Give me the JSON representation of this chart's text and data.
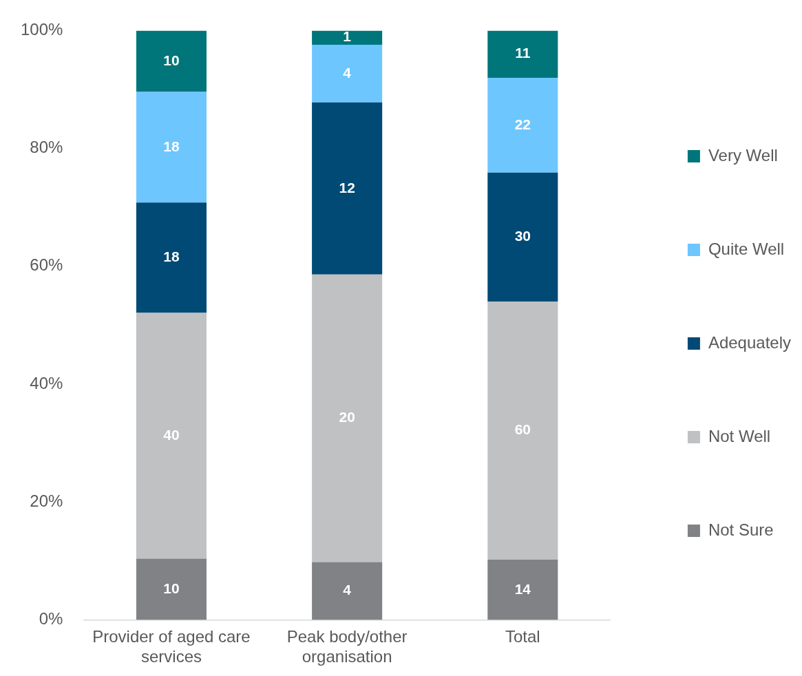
{
  "chart_data": {
    "type": "bar",
    "stacked": true,
    "categories": [
      "Provider of aged care services",
      "Peak body/other organisation",
      "Total"
    ],
    "series": [
      {
        "name": "Not Sure",
        "color": "#808285",
        "values": [
          10.4,
          9.8,
          10.2
        ]
      },
      {
        "name": "Not Well",
        "color": "#c0c1c3",
        "values": [
          41.7,
          48.8,
          43.8
        ]
      },
      {
        "name": "Adequately",
        "color": "#004a75",
        "values": [
          18.7,
          29.2,
          21.9
        ]
      },
      {
        "name": "Quite Well",
        "color": "#6ec6ff",
        "values": [
          18.8,
          9.8,
          16.1
        ]
      },
      {
        "name": "Very Well",
        "color": "#00767a",
        "values": [
          10.4,
          2.4,
          8.0
        ]
      }
    ],
    "annotations": [
      "10",
      "40",
      "18",
      "18",
      "10",
      "4",
      "20",
      "12",
      "4",
      "1",
      "14",
      "60",
      "30",
      "22",
      "11"
    ],
    "ylim": [
      0,
      100
    ],
    "yticks": [
      {
        "value": 0,
        "label": "0%"
      },
      {
        "value": 20,
        "label": "20%"
      },
      {
        "value": 40,
        "label": "40%"
      },
      {
        "value": 60,
        "label": "60%"
      },
      {
        "value": 80,
        "label": "80%"
      },
      {
        "value": 100,
        "label": "100%"
      }
    ],
    "grid": false,
    "legend": "right"
  }
}
